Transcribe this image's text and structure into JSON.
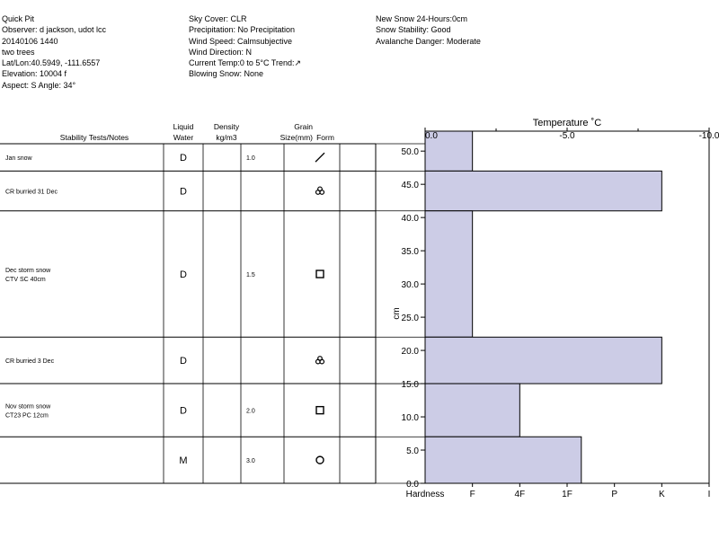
{
  "header": {
    "col1": [
      "Quick Pit",
      "Observer: d jackson, udot lcc",
      "20140106 1440",
      "two trees",
      "Lat/Lon:40.5949, -111.6557",
      "Elevation: 10004 f",
      "Aspect: S Angle: 34°"
    ],
    "col2": [
      "Sky Cover: CLR",
      "Precipitation: No Precipitation",
      "Wind Speed: Calmsubjective",
      "Wind Direction: N",
      "Current Temp:0 to 5°C Trend:↗",
      "Blowing Snow: None"
    ],
    "col3": [
      "New Snow 24-Hours:0cm",
      "Snow Stability: Good",
      "Avalanche Danger: Moderate"
    ]
  },
  "table": {
    "headers": {
      "tests": "Stability Tests/Notes",
      "water": "Liquid\nWater",
      "density": "Density\nkg/m3",
      "grain": "Grain\nSize(mm)",
      "form": "Form"
    },
    "layers": [
      {
        "notes": "Jan snow",
        "water": "D",
        "density": "",
        "grain": "1.0",
        "form": "slash-icon"
      },
      {
        "notes": "CR burried 31 Dec",
        "water": "D",
        "density": "",
        "grain": "",
        "form": "trefoil-icon"
      },
      {
        "notes": "Dec storm snow\nCTV SC 40cm",
        "water": "D",
        "density": "",
        "grain": "1.5",
        "form": "square-icon"
      },
      {
        "notes": "CR burried 3 Dec",
        "water": "D",
        "density": "",
        "grain": "",
        "form": "trefoil-icon"
      },
      {
        "notes": "Nov storm snow\nCT23 PC 12cm",
        "water": "D",
        "density": "",
        "grain": "2.0",
        "form": "square-icon"
      },
      {
        "notes": "",
        "water": "M",
        "density": "",
        "grain": "3.0",
        "form": "circle-icon"
      }
    ]
  },
  "chart_data": {
    "type": "bar",
    "orientation": "horizontal",
    "title": "Temperature ˚C",
    "ylabel": "cm",
    "ylim": [
      0,
      53
    ],
    "yticks": [
      "0.0",
      "5.0",
      "10.0",
      "15.0",
      "20.0",
      "25.0",
      "30.0",
      "35.0",
      "40.0",
      "45.0",
      "50.0"
    ],
    "temperature_ticks": [
      "0.0",
      "-5.0",
      "-10.0"
    ],
    "temperature_range": [
      0,
      -10
    ],
    "hardness_label": "Hardness",
    "hardness_ticks": [
      "F",
      "4F",
      "1F",
      "P",
      "K",
      "I"
    ],
    "bar_color": "#cccce6",
    "layers": [
      {
        "bottom": 47,
        "top": 53,
        "hardness": "F",
        "hardness_level": 1
      },
      {
        "bottom": 41,
        "top": 47,
        "hardness": "K",
        "hardness_level": 5
      },
      {
        "bottom": 22,
        "top": 41,
        "hardness": "F",
        "hardness_level": 1
      },
      {
        "bottom": 15,
        "top": 22,
        "hardness": "K",
        "hardness_level": 5
      },
      {
        "bottom": 7,
        "top": 15,
        "hardness": "4F",
        "hardness_level": 2
      },
      {
        "bottom": 0,
        "top": 7,
        "hardness": "1F+",
        "hardness_level": 3.3
      }
    ]
  }
}
